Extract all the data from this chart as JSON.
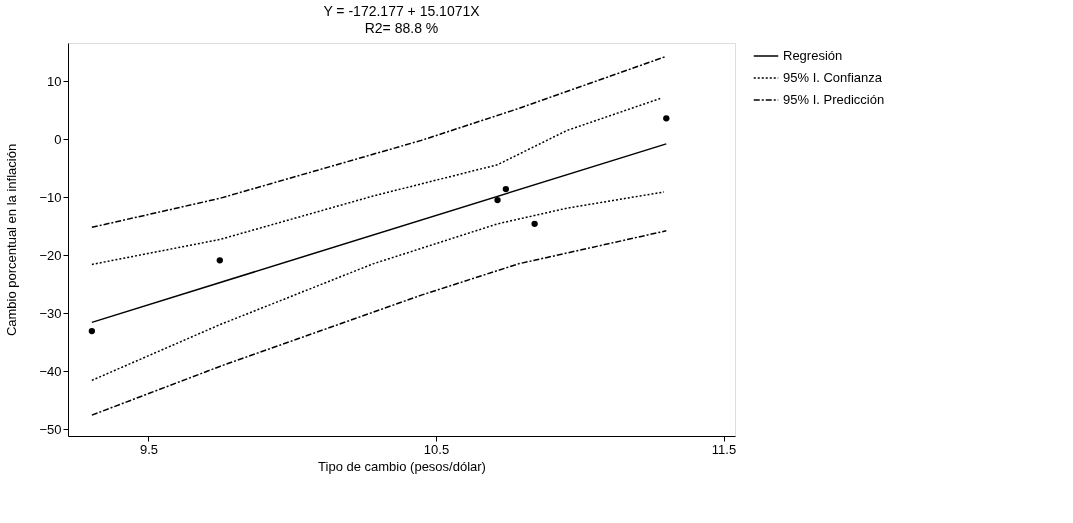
{
  "chart_data": {
    "type": "line",
    "title": "Y = -172.177 + 15.1071X",
    "subtitle": "R2= 88.8 %",
    "xlabel": "Tipo de cambio (pesos/dólar)",
    "ylabel": "Cambio porcentual en la inflación",
    "xlim": [
      9.22,
      11.54
    ],
    "ylim": [
      -51.2,
      16.6
    ],
    "xticks": [
      9.5,
      10.5,
      11.5
    ],
    "yticks": [
      10,
      0,
      -10,
      -20,
      -30,
      -40,
      -50
    ],
    "grid": false,
    "legend": "right",
    "series": [
      {
        "type": "scatter",
        "color": "#000000",
        "marker": "circle",
        "x": [
          9.303,
          9.748,
          10.714,
          10.743,
          10.843,
          11.301
        ],
        "values": [
          -33.1,
          -20.9,
          -10.5,
          -8.6,
          -14.6,
          3.6
        ]
      },
      {
        "name": "Regresión",
        "color": "#000000",
        "line_style": "solid",
        "x": [
          9.303,
          11.301
        ],
        "values": [
          -31.6,
          -0.8
        ]
      },
      {
        "name": "95% I. Confianza",
        "color": "#000000",
        "line_style": "dotted",
        "x": [
          9.303,
          9.748,
          10.281,
          10.714,
          10.955,
          11.284
        ],
        "values": [
          -21.6,
          -17.3,
          -9.8,
          -4.4,
          1.5,
          7.1
        ]
      },
      {
        "color": "#000000",
        "line_style": "dotted",
        "x": [
          9.303,
          9.748,
          10.281,
          10.714,
          10.955,
          11.293
        ],
        "values": [
          -41.6,
          -32.0,
          -21.5,
          -14.6,
          -11.9,
          -9.1
        ]
      },
      {
        "name": "95% I. Predicción",
        "color": "#000000",
        "line_style": "dashdot",
        "x": [
          9.303,
          9.748,
          10.449,
          10.787,
          11.301
        ],
        "values": [
          -15.2,
          -10.2,
          -0.2,
          5.3,
          14.3
        ]
      },
      {
        "color": "#000000",
        "line_style": "dashdot",
        "x": [
          9.303,
          9.748,
          10.449,
          10.787,
          11.301
        ],
        "values": [
          -47.6,
          -39.2,
          -26.9,
          -21.5,
          -15.8
        ]
      }
    ]
  }
}
